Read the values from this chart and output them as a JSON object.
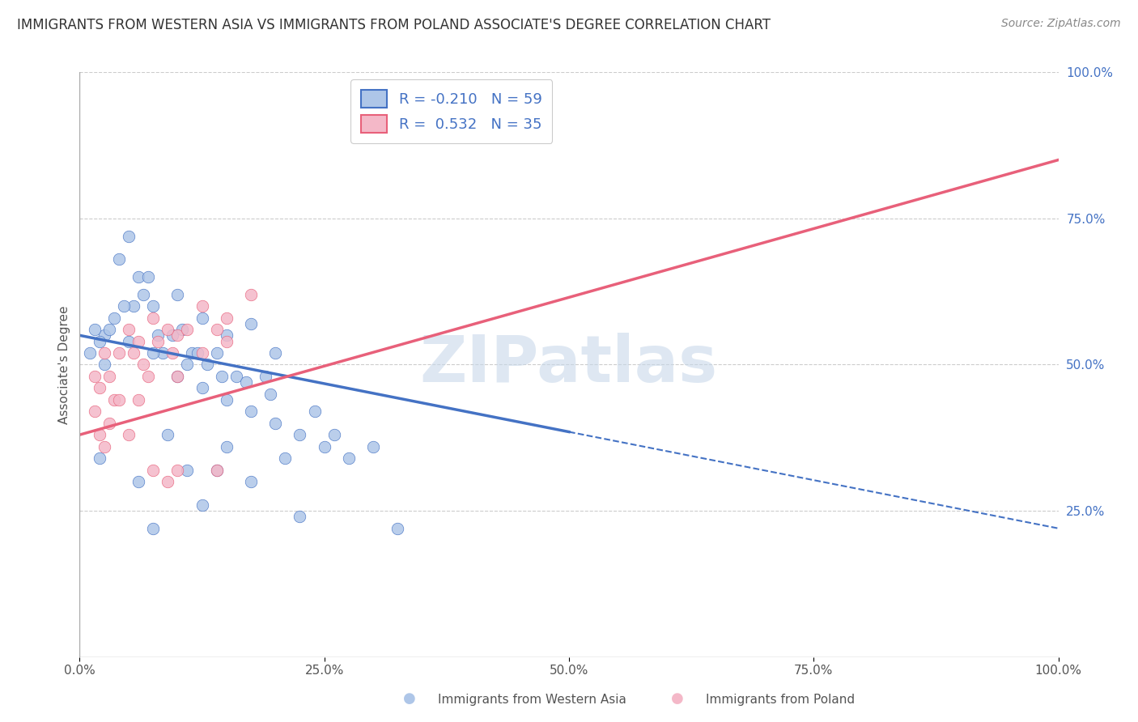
{
  "title": "IMMIGRANTS FROM WESTERN ASIA VS IMMIGRANTS FROM POLAND ASSOCIATE'S DEGREE CORRELATION CHART",
  "source": "Source: ZipAtlas.com",
  "xlabel_blue": "Immigrants from Western Asia",
  "xlabel_pink": "Immigrants from Poland",
  "ylabel": "Associate's Degree",
  "r_blue": -0.21,
  "n_blue": 59,
  "r_pink": 0.532,
  "n_pink": 35,
  "blue_color": "#aec6e8",
  "blue_line_color": "#4472c4",
  "pink_color": "#f4b8c8",
  "pink_line_color": "#e8607a",
  "blue_scatter": [
    [
      0.5,
      55.0
    ],
    [
      1.0,
      72.0
    ],
    [
      1.5,
      60.0
    ],
    [
      2.0,
      62.0
    ],
    [
      1.2,
      65.0
    ],
    [
      2.5,
      58.0
    ],
    [
      3.0,
      55.0
    ],
    [
      3.5,
      57.0
    ],
    [
      0.8,
      68.0
    ],
    [
      4.0,
      52.0
    ],
    [
      0.3,
      56.0
    ],
    [
      0.7,
      58.0
    ],
    [
      1.1,
      60.0
    ],
    [
      1.3,
      62.0
    ],
    [
      1.6,
      55.0
    ],
    [
      2.2,
      50.0
    ],
    [
      2.8,
      52.0
    ],
    [
      3.2,
      48.0
    ],
    [
      0.4,
      54.0
    ],
    [
      0.9,
      60.0
    ],
    [
      1.4,
      65.0
    ],
    [
      1.7,
      52.0
    ],
    [
      2.3,
      52.0
    ],
    [
      2.6,
      50.0
    ],
    [
      3.8,
      48.0
    ],
    [
      0.6,
      56.0
    ],
    [
      1.9,
      55.0
    ],
    [
      2.1,
      56.0
    ],
    [
      2.4,
      52.0
    ],
    [
      2.9,
      48.0
    ],
    [
      3.4,
      47.0
    ],
    [
      3.9,
      45.0
    ],
    [
      0.2,
      52.0
    ],
    [
      0.5,
      50.0
    ],
    [
      1.0,
      54.0
    ],
    [
      1.5,
      52.0
    ],
    [
      2.0,
      48.0
    ],
    [
      2.5,
      46.0
    ],
    [
      3.0,
      44.0
    ],
    [
      3.5,
      42.0
    ],
    [
      4.0,
      40.0
    ],
    [
      4.5,
      38.0
    ],
    [
      5.0,
      36.0
    ],
    [
      5.5,
      34.0
    ],
    [
      1.2,
      30.0
    ],
    [
      2.2,
      32.0
    ],
    [
      3.5,
      30.0
    ],
    [
      4.8,
      42.0
    ],
    [
      5.2,
      38.0
    ],
    [
      6.0,
      36.0
    ],
    [
      0.4,
      34.0
    ],
    [
      1.8,
      38.0
    ],
    [
      2.8,
      32.0
    ],
    [
      3.0,
      36.0
    ],
    [
      4.2,
      34.0
    ],
    [
      1.5,
      22.0
    ],
    [
      2.5,
      26.0
    ],
    [
      4.5,
      24.0
    ],
    [
      6.5,
      22.0
    ]
  ],
  "pink_scatter": [
    [
      0.5,
      52.0
    ],
    [
      1.0,
      56.0
    ],
    [
      1.5,
      58.0
    ],
    [
      2.0,
      55.0
    ],
    [
      2.5,
      60.0
    ],
    [
      0.3,
      48.0
    ],
    [
      0.8,
      52.0
    ],
    [
      1.2,
      54.0
    ],
    [
      1.8,
      56.0
    ],
    [
      3.0,
      58.0
    ],
    [
      0.4,
      46.0
    ],
    [
      0.6,
      48.0
    ],
    [
      1.1,
      52.0
    ],
    [
      1.6,
      54.0
    ],
    [
      2.2,
      56.0
    ],
    [
      0.7,
      44.0
    ],
    [
      1.3,
      50.0
    ],
    [
      1.9,
      52.0
    ],
    [
      2.8,
      56.0
    ],
    [
      0.5,
      36.0
    ],
    [
      1.0,
      38.0
    ],
    [
      1.5,
      32.0
    ],
    [
      2.0,
      32.0
    ],
    [
      0.3,
      42.0
    ],
    [
      0.8,
      44.0
    ],
    [
      1.4,
      48.0
    ],
    [
      2.5,
      52.0
    ],
    [
      0.4,
      38.0
    ],
    [
      0.6,
      40.0
    ],
    [
      1.2,
      44.0
    ],
    [
      2.0,
      48.0
    ],
    [
      3.0,
      54.0
    ],
    [
      3.5,
      62.0
    ],
    [
      1.8,
      30.0
    ],
    [
      2.8,
      32.0
    ]
  ],
  "xlim": [
    0.0,
    100.0
  ],
  "ylim": [
    0.0,
    100.0
  ],
  "x_scale": 5.0,
  "xticklabels": [
    "0.0%",
    "25.0%",
    "50.0%",
    "75.0%",
    "100.0%"
  ],
  "xtick_positions_pct": [
    0.0,
    25.0,
    50.0,
    75.0,
    100.0
  ],
  "ytick_right_labels": [
    "25.0%",
    "50.0%",
    "75.0%",
    "100.0%"
  ],
  "ytick_right_vals": [
    25.0,
    50.0,
    75.0,
    100.0
  ],
  "grid_color": "#cccccc",
  "background_color": "#ffffff",
  "watermark": "ZIPatlas",
  "watermark_color": "#c8d8ea",
  "blue_solid_end": 50.0,
  "blue_line_start_y": 55.0,
  "blue_line_end_y": 22.0,
  "pink_line_start_y": 38.0,
  "pink_line_end_y": 85.0
}
